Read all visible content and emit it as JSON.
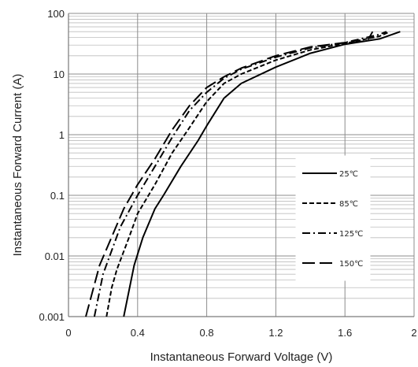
{
  "chart_data": {
    "type": "line",
    "title": "",
    "xlabel": "Instantaneous Forward Voltage (V)",
    "ylabel": "Instantaneous Forward Current (A)",
    "xscale": "linear",
    "yscale": "log",
    "xlim": [
      0,
      2
    ],
    "ylim": [
      0.001,
      100
    ],
    "x_ticks": [
      "0",
      "0.4",
      "0.8",
      "1.2",
      "1.6",
      "2"
    ],
    "y_ticks": [
      "0.001",
      "0.01",
      "0.1",
      "1",
      "10",
      "100"
    ],
    "grid": true,
    "legend_position": "center-right",
    "series": [
      {
        "name": "25℃",
        "line_style": "solid",
        "color": "#000000",
        "points": [
          [
            0.32,
            0.001
          ],
          [
            0.38,
            0.007
          ],
          [
            0.43,
            0.02
          ],
          [
            0.5,
            0.06
          ],
          [
            0.55,
            0.1
          ],
          [
            0.65,
            0.3
          ],
          [
            0.75,
            0.8
          ],
          [
            0.8,
            1.4
          ],
          [
            0.9,
            4
          ],
          [
            1.0,
            7
          ],
          [
            1.2,
            13
          ],
          [
            1.4,
            22
          ],
          [
            1.6,
            31
          ],
          [
            1.8,
            38
          ],
          [
            1.92,
            50
          ]
        ]
      },
      {
        "name": "85℃",
        "line_style": "dashed",
        "color": "#000000",
        "points": [
          [
            0.22,
            0.001
          ],
          [
            0.25,
            0.003
          ],
          [
            0.28,
            0.006
          ],
          [
            0.35,
            0.02
          ],
          [
            0.4,
            0.05
          ],
          [
            0.5,
            0.15
          ],
          [
            0.6,
            0.5
          ],
          [
            0.7,
            1.3
          ],
          [
            0.8,
            3.5
          ],
          [
            0.9,
            7
          ],
          [
            1.0,
            10
          ],
          [
            1.2,
            17
          ],
          [
            1.4,
            25
          ],
          [
            1.6,
            32
          ],
          [
            1.8,
            42
          ],
          [
            1.86,
            50
          ]
        ]
      },
      {
        "name": "125℃",
        "line_style": "dash-dot",
        "color": "#000000",
        "points": [
          [
            0.15,
            0.001
          ],
          [
            0.2,
            0.005
          ],
          [
            0.3,
            0.03
          ],
          [
            0.4,
            0.1
          ],
          [
            0.5,
            0.3
          ],
          [
            0.6,
            0.9
          ],
          [
            0.7,
            2.5
          ],
          [
            0.8,
            5
          ],
          [
            0.9,
            8.5
          ],
          [
            1.0,
            12
          ],
          [
            1.2,
            19
          ],
          [
            1.4,
            27
          ],
          [
            1.6,
            33
          ],
          [
            1.8,
            45
          ],
          [
            1.84,
            50
          ]
        ]
      },
      {
        "name": "150℃",
        "line_style": "long-dash",
        "color": "#000000",
        "points": [
          [
            0.1,
            0.001
          ],
          [
            0.18,
            0.007
          ],
          [
            0.32,
            0.06
          ],
          [
            0.4,
            0.15
          ],
          [
            0.5,
            0.4
          ],
          [
            0.6,
            1.2
          ],
          [
            0.7,
            3
          ],
          [
            0.8,
            6
          ],
          [
            0.9,
            9
          ],
          [
            1.0,
            12.5
          ],
          [
            1.2,
            20
          ],
          [
            1.4,
            28
          ],
          [
            1.6,
            33
          ],
          [
            1.73,
            35
          ],
          [
            1.76,
            50
          ]
        ]
      }
    ]
  }
}
